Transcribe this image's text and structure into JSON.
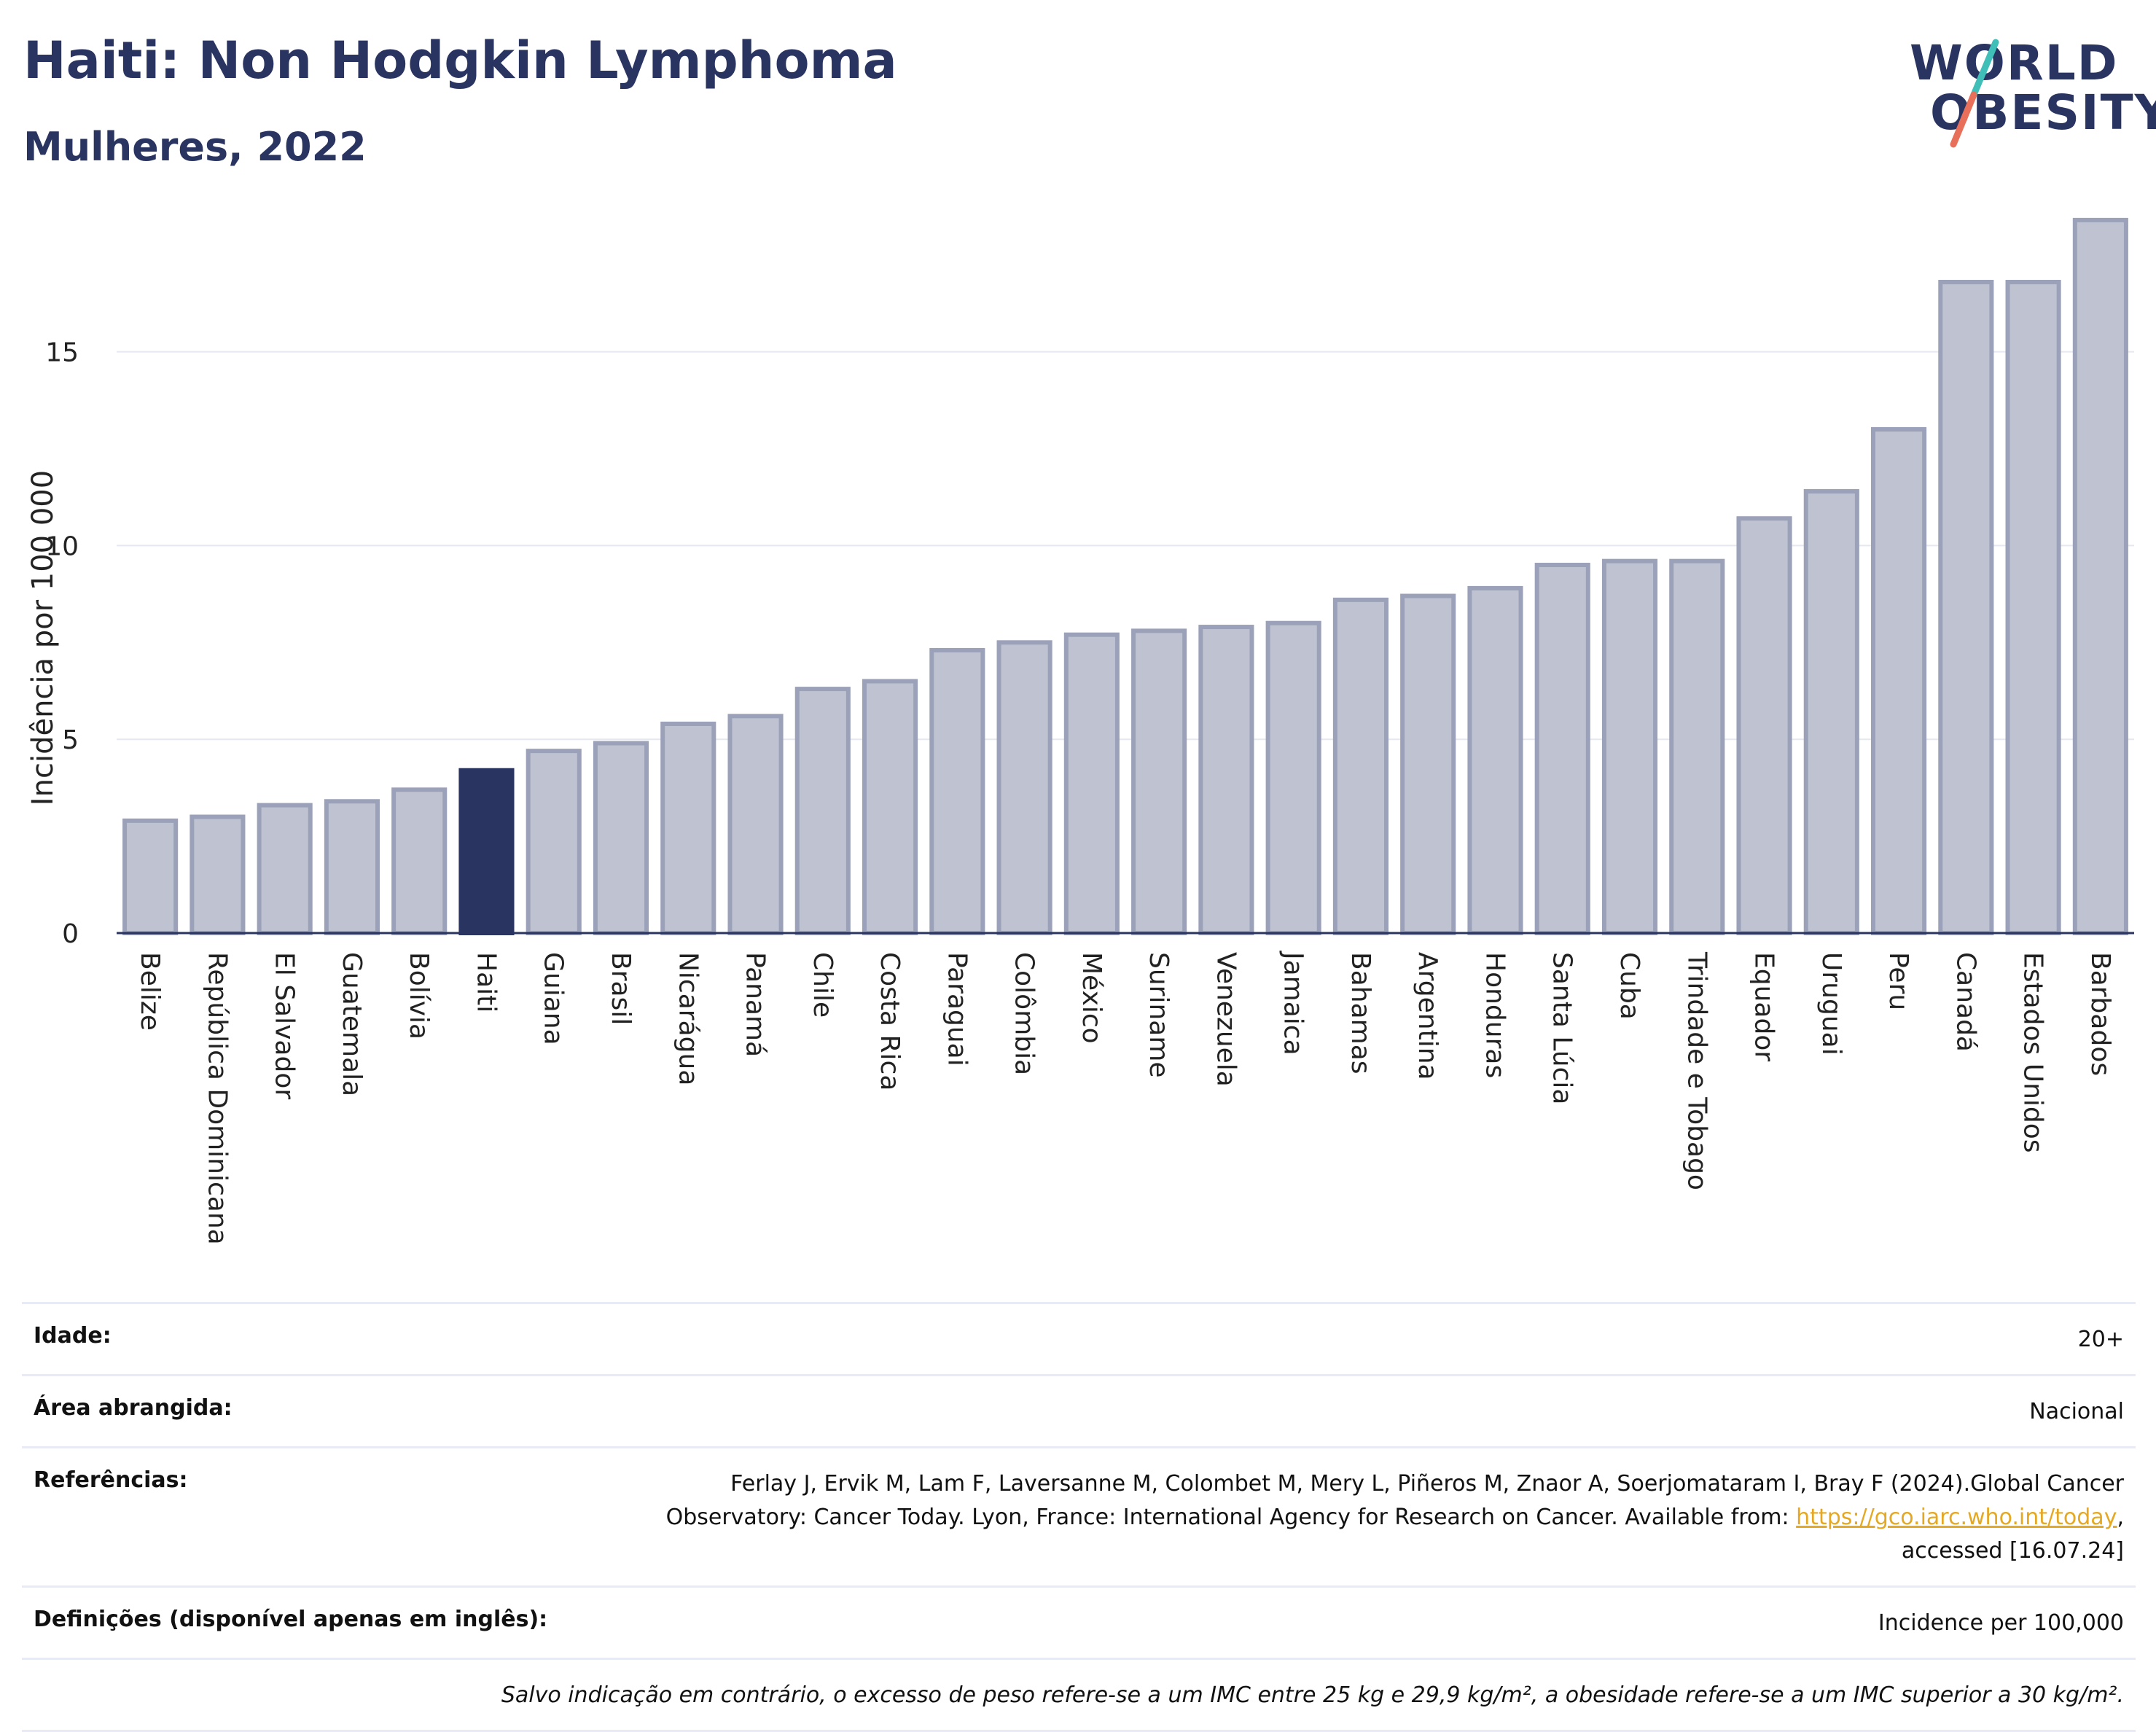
{
  "header": {
    "title": "Haiti: Non Hodgkin Lymphoma",
    "subtitle": "Mulheres, 2022",
    "logo_line1": "WORLD",
    "logo_line2": "OBESITY"
  },
  "colors": {
    "highlight": "#2a3461",
    "bar_fill": "#bfc3d1",
    "bar_stroke": "#9ba1b8",
    "logo_slash_teal": "#3fbfb8",
    "logo_slash_coral": "#e8705a"
  },
  "chart_data": {
    "type": "bar",
    "ylabel": "Incidência por 100 000",
    "ylim": [
      0,
      19
    ],
    "yticks": [
      0,
      5,
      10,
      15
    ],
    "grid": true,
    "highlight": "Haiti",
    "categories": [
      "Belize",
      "República Dominicana",
      "El Salvador",
      "Guatemala",
      "Bolívia",
      "Haiti",
      "Guiana",
      "Brasil",
      "Nicarágua",
      "Panamá",
      "Chile",
      "Costa Rica",
      "Paraguai",
      "Colômbia",
      "México",
      "Suriname",
      "Venezuela",
      "Jamaica",
      "Bahamas",
      "Argentina",
      "Honduras",
      "Santa Lúcia",
      "Cuba",
      "Trindade e Tobago",
      "Equador",
      "Uruguai",
      "Peru",
      "Canadá",
      "Estados Unidos",
      "Barbados"
    ],
    "values": [
      2.9,
      3.0,
      3.3,
      3.4,
      3.7,
      4.2,
      4.7,
      4.9,
      5.4,
      5.6,
      6.3,
      6.5,
      7.3,
      7.5,
      7.7,
      7.8,
      7.9,
      8.0,
      8.6,
      8.7,
      8.9,
      9.5,
      9.6,
      9.6,
      10.7,
      11.4,
      13.0,
      16.8,
      16.8,
      18.4
    ]
  },
  "info": {
    "age_label": "Idade:",
    "age_value": "20+",
    "area_label": "Área abrangida:",
    "area_value": "Nacional",
    "ref_label": "Referências:",
    "ref_text_1": "Ferlay J, Ervik M, Lam F, Laversanne M, Colombet M, Mery L, Piñeros M, Znaor A, Soerjomataram I, Bray F (2024).Global Cancer Observatory: Cancer Today. Lyon, France: International Agency for Research on Cancer. Available from: ",
    "ref_link": "https://gco.iarc.who.int/today",
    "ref_text_2": ", accessed [16.07.24]",
    "def_label": "Definições (disponível apenas em inglês):",
    "def_value": "Incidence per 100,000",
    "note": "Salvo indicação em contrário, o excesso de peso refere-se a um IMC entre 25 kg e 29,9 kg/m², a obesidade refere-se a um IMC superior a 30 kg/m²."
  }
}
